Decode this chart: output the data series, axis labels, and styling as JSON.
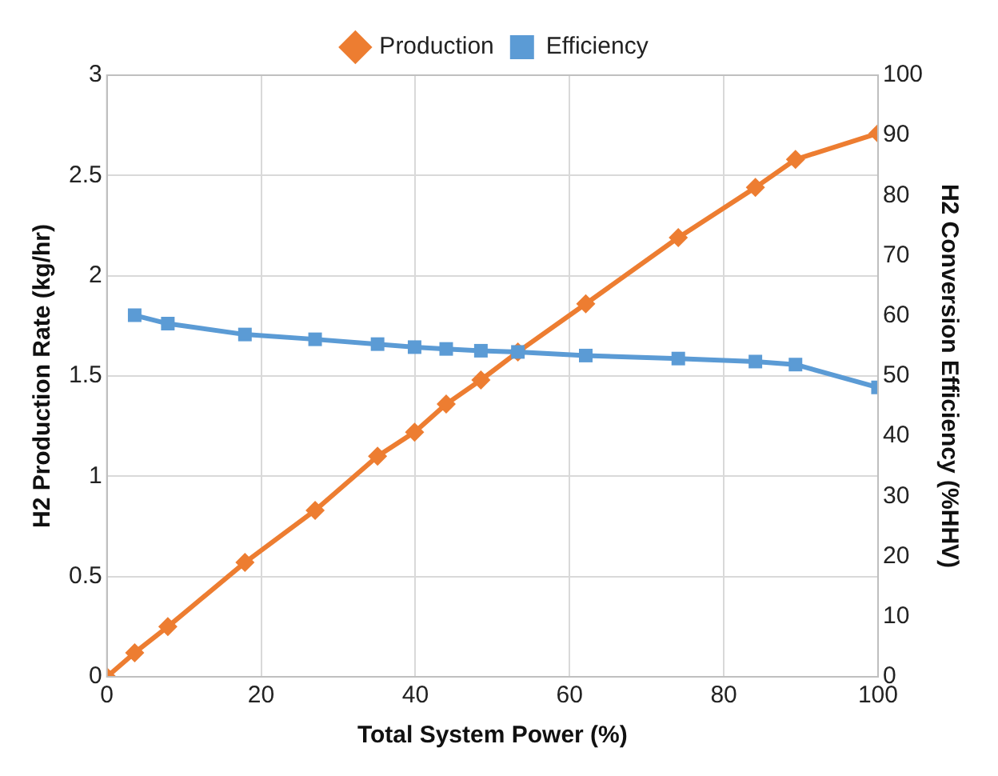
{
  "chart_data": {
    "type": "line",
    "xlabel": "Total System Power (%)",
    "ylabel": "H2 Production Rate (kg/hr)",
    "y2label": "H2 Conversion Efficiency (%HHV)",
    "xlim": [
      0,
      100
    ],
    "xticks": [
      0,
      20,
      40,
      60,
      80,
      100
    ],
    "ylim": [
      0,
      3
    ],
    "yticks": [
      0,
      0.5,
      1,
      1.5,
      2,
      2.5,
      3
    ],
    "y2lim": [
      0,
      100
    ],
    "y2ticks": [
      0,
      10,
      20,
      30,
      40,
      50,
      60,
      70,
      80,
      90,
      100
    ],
    "grid": true,
    "legend": "top",
    "line_style": "solid",
    "series": [
      {
        "name": "Production",
        "color": "#ed7d31",
        "marker": "diamond",
        "x": [
          0,
          3.6,
          7.9,
          17.9,
          27,
          35.1,
          39.9,
          44,
          48.5,
          53.3,
          62.1,
          74.1,
          84.1,
          89.3,
          100
        ],
        "values": [
          0,
          0.12,
          0.25,
          0.57,
          0.83,
          1.1,
          1.22,
          1.36,
          1.48,
          1.62,
          1.86,
          2.19,
          2.44,
          2.58,
          2.71
        ]
      },
      {
        "name": "Efficiency",
        "color": "#5b9bd5",
        "marker": "square",
        "axis": "y2",
        "x": [
          3.6,
          7.9,
          17.9,
          27,
          35.1,
          39.9,
          44,
          48.5,
          53.3,
          62.1,
          74.1,
          84.1,
          89.3,
          100
        ],
        "values": [
          60.1,
          58.7,
          56.9,
          56.1,
          55.3,
          54.8,
          54.5,
          54.2,
          54,
          53.4,
          52.9,
          52.4,
          51.9,
          48.1
        ]
      }
    ]
  }
}
